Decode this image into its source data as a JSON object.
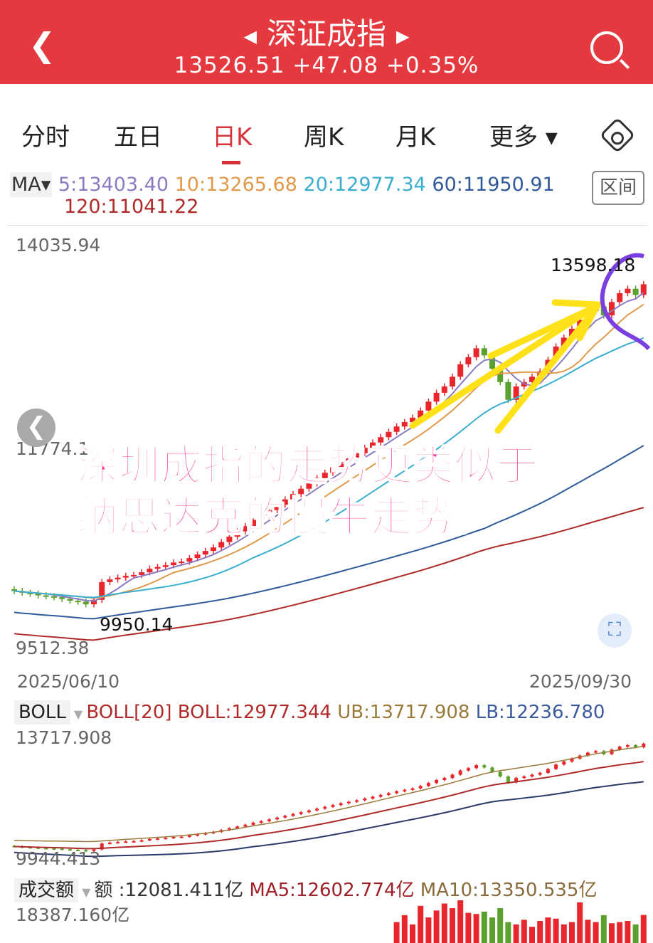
{
  "header": {
    "title": "深证成指",
    "quote": "13526.51 +47.08 +0.35%",
    "back_icon": "chevron-left-icon",
    "search_icon": "search-icon",
    "prev_icon": "triangle-left-icon",
    "next_icon": "triangle-right-icon",
    "bg_color": "#e3393f"
  },
  "tabs": [
    {
      "label": "分时"
    },
    {
      "label": "五日"
    },
    {
      "label": "日K",
      "active": true
    },
    {
      "label": "周K"
    },
    {
      "label": "月K"
    },
    {
      "label": "更多 ▾"
    }
  ],
  "ma_legend": {
    "selector": "MA▾",
    "ma5": "5:13403.40",
    "ma10": "10:13265.68",
    "ma20": "20:12977.34",
    "ma60": "60:11950.91",
    "ma120": "120:11041.22",
    "range_button": "区间",
    "colors": {
      "ma5": "#8c7bc0",
      "ma10": "#e09a4a",
      "ma20": "#3aaed0",
      "ma60": "#2f5b9a",
      "ma120": "#b02a2a"
    }
  },
  "main_chart": {
    "y_top": "14035.94",
    "y_mid": "11774.1",
    "y_bottom": "9512.38",
    "high_label": "13598.18",
    "low_label": "9950.14",
    "date_start": "2025/06/10",
    "date_end": "2025/09/30",
    "ylim": [
      9512.38,
      14035.94
    ],
    "closes": [
      10150,
      10130,
      10120,
      10100,
      10090,
      10080,
      10060,
      10040,
      10030,
      10000,
      10050,
      10250,
      10280,
      10300,
      10320,
      10330,
      10360,
      10400,
      10420,
      10440,
      10470,
      10480,
      10520,
      10560,
      10600,
      10640,
      10700,
      10760,
      10820,
      10880,
      10950,
      11000,
      11060,
      11120,
      11180,
      11240,
      11300,
      11360,
      11420,
      11480,
      11540,
      11600,
      11650,
      11700,
      11760,
      11820,
      11880,
      11940,
      12000,
      12050,
      12100,
      12180,
      12280,
      12380,
      12450,
      12560,
      12700,
      12780,
      12880,
      12800,
      12650,
      12500,
      12300,
      12450,
      12500,
      12560,
      12620,
      12750,
      12900,
      13000,
      13100,
      13200,
      13300,
      13350,
      13250,
      13400,
      13500,
      13550,
      13480,
      13600
    ],
    "up_color": "#e8262b",
    "down_color": "#5aa02c"
  },
  "annotation": {
    "text_line1": "深圳成指的走势更类似于",
    "text_line2": "纳思达克的慢牛走势。"
  },
  "boll": {
    "selector": "BOLL",
    "label": "BOLL[20]",
    "boll": "BOLL:12977.344",
    "ub": "UB:13717.908",
    "lb": "LB:12236.780",
    "y_top": "13717.908",
    "y_bottom": "9944.413",
    "ylim": [
      9944.413,
      13717.908
    ]
  },
  "volume": {
    "selector": "成交额",
    "amount": "额 :12081.411亿",
    "ma5": "MA5:12602.774亿",
    "ma10": "MA10:13350.535亿",
    "y_top": "18387.160亿",
    "values": [
      9000,
      12000,
      8000,
      16000,
      11000,
      14000,
      17000,
      15000,
      18387,
      13000,
      12500,
      13500,
      11000,
      15000,
      9000,
      8000,
      10000,
      7000,
      9500,
      11000,
      10500,
      8000,
      9000,
      17500,
      10000,
      9000,
      12000,
      8500,
      9000,
      9500,
      8000,
      12081
    ]
  }
}
